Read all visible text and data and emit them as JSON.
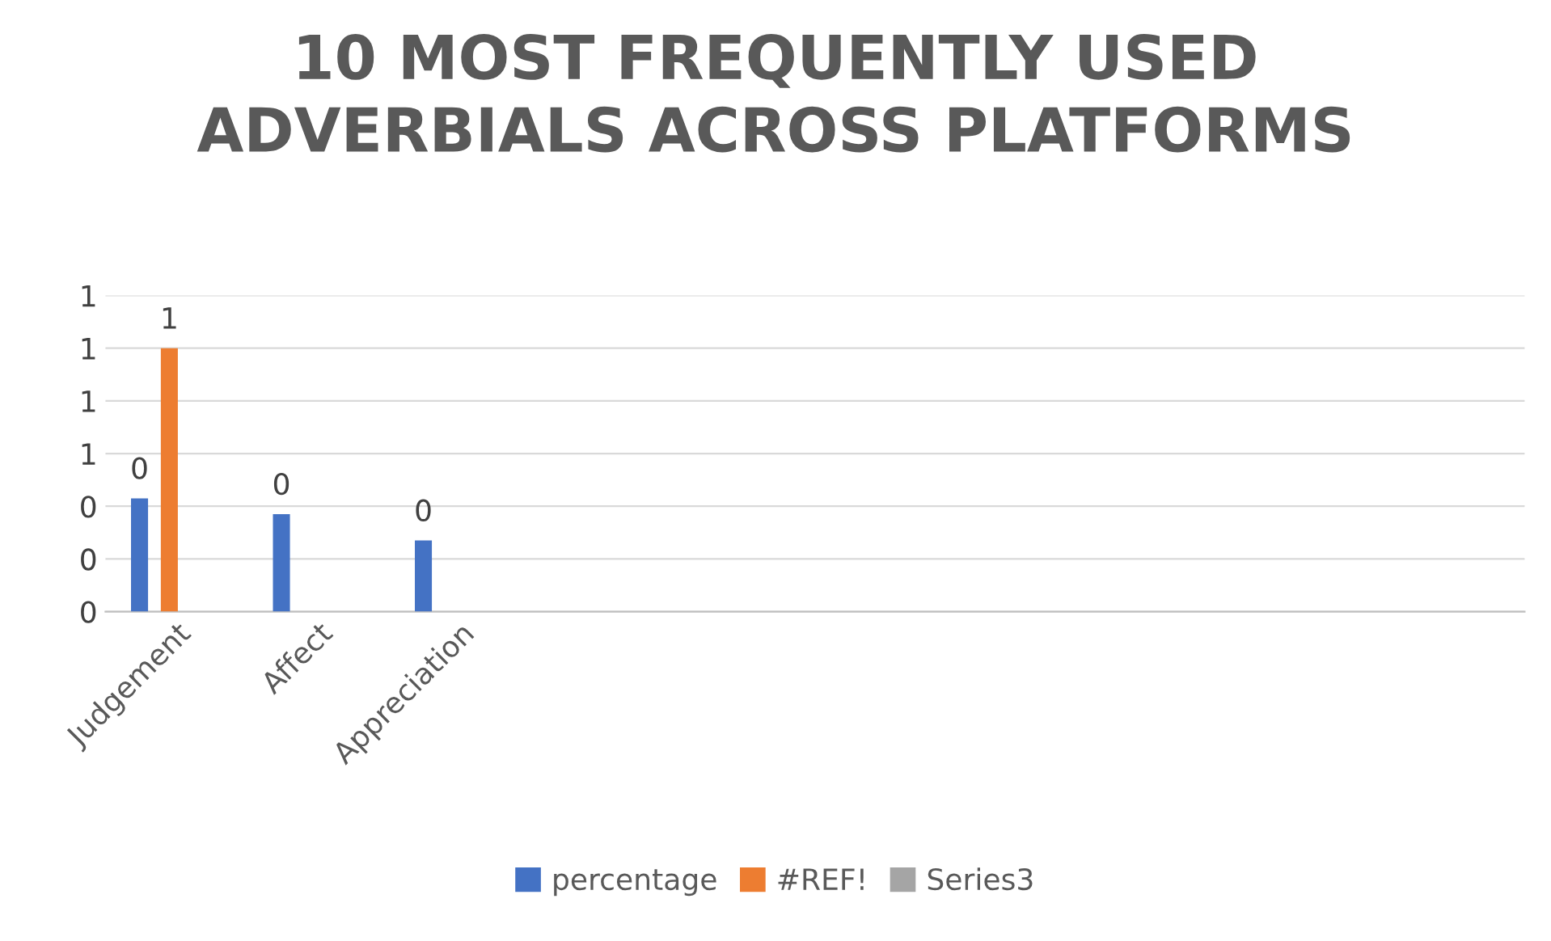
{
  "chart_data": {
    "type": "bar",
    "title": "10 MOST FREQUENTLY USED\nADVERBIALS ACROSS PLATFORMS",
    "categories": [
      "Judgement",
      "Affect",
      "Appreciation",
      null,
      null,
      null,
      null,
      null,
      null,
      null
    ],
    "series": [
      {
        "name": "percentage",
        "color": "#4472c4",
        "values": [
          0.43,
          0.37,
          0.27,
          null,
          null,
          null,
          null,
          null,
          null,
          null
        ],
        "value_labels": [
          "0",
          "0",
          "0",
          null,
          null,
          null,
          null,
          null,
          null,
          null
        ]
      },
      {
        "name": "#REF!",
        "color": "#ed7d31",
        "values": [
          1.0,
          null,
          null,
          null,
          null,
          null,
          null,
          null,
          null,
          null
        ],
        "value_labels": [
          "1",
          null,
          null,
          null,
          null,
          null,
          null,
          null,
          null,
          null
        ]
      },
      {
        "name": "Series3",
        "color": "#a5a5a5",
        "values": [
          null,
          null,
          null,
          null,
          null,
          null,
          null,
          null,
          null,
          null
        ]
      }
    ],
    "ylim": [
      0,
      1.2
    ],
    "yticks": [
      {
        "value": 0,
        "label": "0"
      },
      {
        "value": 0.2,
        "label": "0"
      },
      {
        "value": 0.4,
        "label": "0"
      },
      {
        "value": 0.6,
        "label": "1"
      },
      {
        "value": 0.8,
        "label": "1"
      },
      {
        "value": 1.0,
        "label": "1"
      },
      {
        "value": 1.2,
        "label": "1"
      }
    ],
    "grid": "y",
    "legend": "bottom"
  }
}
